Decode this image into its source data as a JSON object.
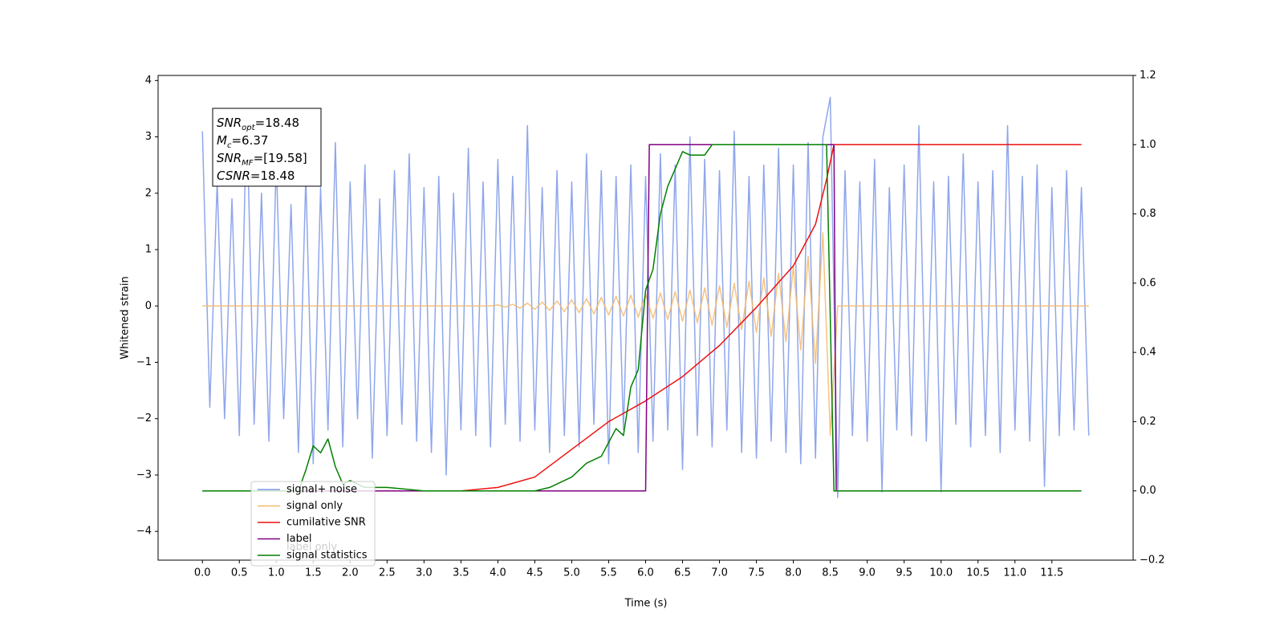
{
  "chart_data": {
    "type": "line",
    "xlabel": "Time (s)",
    "ylabel": "Whitened strain",
    "xlim": [
      -0.6,
      12.6
    ],
    "ylim": [
      -4.51,
      4.09
    ],
    "y2lim": [
      -0.2,
      1.2
    ],
    "xticks": [
      {
        "value": 0,
        "label": "0.0"
      },
      {
        "value": 0.5,
        "label": "0.5"
      },
      {
        "value": 1,
        "label": "1.0"
      },
      {
        "value": 1.5,
        "label": "1.5"
      },
      {
        "value": 2,
        "label": "2.0"
      },
      {
        "value": 2.5,
        "label": "2.5"
      },
      {
        "value": 3,
        "label": "3.0"
      },
      {
        "value": 3.5,
        "label": "3.5"
      },
      {
        "value": 4,
        "label": "4.0"
      },
      {
        "value": 4.5,
        "label": "4.5"
      },
      {
        "value": 5,
        "label": "5.0"
      },
      {
        "value": 5.5,
        "label": "5.5"
      },
      {
        "value": 6,
        "label": "6.0"
      },
      {
        "value": 6.5,
        "label": "6.5"
      },
      {
        "value": 7,
        "label": "7.0"
      },
      {
        "value": 7.5,
        "label": "7.5"
      },
      {
        "value": 8,
        "label": "8.0"
      },
      {
        "value": 8.5,
        "label": "8.5"
      },
      {
        "value": 9,
        "label": "9.0"
      },
      {
        "value": 9.5,
        "label": "9.5"
      },
      {
        "value": 10,
        "label": "10.0"
      },
      {
        "value": 10.5,
        "label": "10.5"
      },
      {
        "value": 11,
        "label": "11.0"
      },
      {
        "value": 11.5,
        "label": "11.5"
      }
    ],
    "yticks": [
      {
        "value": -4,
        "label": "−4"
      },
      {
        "value": -3,
        "label": "−3"
      },
      {
        "value": -2,
        "label": "−2"
      },
      {
        "value": -1,
        "label": "−1"
      },
      0,
      1,
      2,
      3,
      4
    ],
    "y2ticks": [
      {
        "value": -0.2,
        "label": "−0.2"
      },
      {
        "value": 0,
        "label": "0.0"
      },
      {
        "value": 0.2,
        "label": "0.2"
      },
      {
        "value": 0.4,
        "label": "0.4"
      },
      {
        "value": 0.6,
        "label": "0.6"
      },
      {
        "value": 0.8,
        "label": "0.8"
      },
      {
        "value": 1,
        "label": "1.0"
      },
      {
        "value": 1.2,
        "label": "1.2"
      }
    ],
    "legend": "lower left",
    "x": [
      0,
      0.1,
      0.2,
      0.3,
      0.4,
      0.5,
      0.6,
      0.7,
      0.8,
      0.9,
      1,
      1.1,
      1.2,
      1.3,
      1.4,
      1.5,
      1.6,
      1.7,
      1.8,
      1.9,
      2,
      2.1,
      2.2,
      2.3,
      2.4,
      2.5,
      2.6,
      2.7,
      2.8,
      2.9,
      3,
      3.1,
      3.2,
      3.3,
      3.4,
      3.5,
      3.6,
      3.7,
      3.8,
      3.9,
      4,
      4.1,
      4.2,
      4.3,
      4.4,
      4.5,
      4.6,
      4.7,
      4.8,
      4.9,
      5,
      5.1,
      5.2,
      5.3,
      5.4,
      5.5,
      5.6,
      5.7,
      5.8,
      5.9,
      6,
      6.1,
      6.2,
      6.3,
      6.4,
      6.5,
      6.6,
      6.7,
      6.8,
      6.9,
      7,
      7.1,
      7.2,
      7.3,
      7.4,
      7.5,
      7.6,
      7.7,
      7.8,
      7.9,
      8,
      8.1,
      8.2,
      8.3,
      8.4,
      8.5,
      8.6,
      8.7,
      8.8,
      8.9,
      9,
      9.1,
      9.2,
      9.3,
      9.4,
      9.5,
      9.6,
      9.7,
      9.8,
      9.9,
      10,
      10.1,
      10.2,
      10.3,
      10.4,
      10.5,
      10.6,
      10.7,
      10.8,
      10.9,
      11,
      11.1,
      11.2,
      11.3,
      11.4,
      11.5,
      11.6,
      11.7,
      11.8,
      11.9,
      12
    ],
    "series": [
      {
        "name": "signal+ noise",
        "color": "#7b96e8",
        "axis": "y",
        "values": [
          3.1,
          -1.8,
          2.2,
          -2.0,
          1.9,
          -2.3,
          3.5,
          -2.1,
          2.0,
          -2.4,
          2.6,
          -2.0,
          1.8,
          -2.6,
          2.3,
          -2.8,
          2.1,
          -2.2,
          2.9,
          -2.5,
          2.2,
          -2.0,
          2.5,
          -2.7,
          1.9,
          -2.3,
          2.4,
          -2.1,
          2.7,
          -2.4,
          2.1,
          -2.6,
          2.3,
          -3.0,
          2.0,
          -2.2,
          2.8,
          -2.3,
          2.2,
          -2.5,
          2.6,
          -2.1,
          2.3,
          -2.4,
          3.2,
          -2.2,
          2.1,
          -2.6,
          2.4,
          -2.3,
          2.2,
          -2.5,
          2.7,
          -2.1,
          2.4,
          -2.8,
          2.3,
          -2.2,
          2.5,
          -2.6,
          2.3,
          -2.4,
          2.7,
          -2.2,
          2.5,
          -2.9,
          3.0,
          -2.3,
          2.6,
          -2.5,
          2.4,
          -2.2,
          3.1,
          -2.6,
          2.3,
          -2.7,
          2.5,
          -2.4,
          2.8,
          -2.6,
          2.5,
          -2.8,
          2.9,
          -2.7,
          3.0,
          3.7,
          -3.4,
          2.4,
          -2.3,
          2.2,
          -2.4,
          2.6,
          -3.3,
          2.1,
          -2.2,
          2.5,
          -2.3,
          3.2,
          -2.4,
          2.2,
          -3.3,
          2.3,
          -2.1,
          2.7,
          -2.5,
          2.2,
          -2.3,
          2.4,
          -2.6,
          3.2,
          -2.2,
          2.3,
          -2.4,
          2.5,
          -3.2,
          2.1,
          -2.3,
          2.4,
          -2.2,
          2.1,
          -2.3
        ]
      },
      {
        "name": "signal only",
        "color": "#f5b86a",
        "axis": "y",
        "values": [
          0,
          0,
          0,
          0,
          0,
          0,
          0,
          0,
          0,
          0,
          0,
          0,
          0,
          0,
          0,
          0,
          0,
          0,
          0,
          0,
          0,
          0,
          0,
          0,
          0,
          0,
          0,
          0,
          0,
          0,
          0,
          0,
          0,
          0,
          0,
          0,
          0,
          0,
          0,
          0,
          0.02,
          -0.02,
          0.03,
          -0.04,
          0.05,
          -0.06,
          0.07,
          -0.08,
          0.09,
          -0.1,
          0.11,
          -0.12,
          0.13,
          -0.14,
          0.15,
          -0.16,
          0.17,
          -0.18,
          0.19,
          -0.2,
          0.21,
          -0.22,
          0.23,
          -0.24,
          0.25,
          -0.27,
          0.28,
          -0.3,
          0.32,
          -0.34,
          0.36,
          -0.38,
          0.4,
          -0.42,
          0.44,
          -0.47,
          0.5,
          -0.54,
          0.58,
          -0.63,
          0.7,
          -0.78,
          0.88,
          -1.02,
          1.3,
          -2.3,
          0,
          0,
          0,
          0,
          0,
          0,
          0,
          0,
          0,
          0,
          0,
          0,
          0,
          0,
          0,
          0,
          0,
          0,
          0,
          0,
          0,
          0,
          0,
          0,
          0,
          0,
          0,
          0,
          0,
          0,
          0,
          0,
          0,
          0,
          0
        ]
      },
      {
        "name": "cumilative SNR",
        "color": "#ee1111",
        "axis": "y2",
        "x": [
          0,
          3.5,
          4,
          4.5,
          5,
          5.5,
          6,
          6.5,
          7,
          7.5,
          8,
          8.3,
          8.45,
          8.55,
          11.9
        ],
        "values": [
          0,
          0,
          0.01,
          0.04,
          0.12,
          0.2,
          0.26,
          0.33,
          0.42,
          0.53,
          0.65,
          0.77,
          0.9,
          1,
          1
        ]
      },
      {
        "name": "label",
        "color": "#800080",
        "axis": "y2",
        "x": [
          0,
          6,
          6.05,
          8.55,
          8.58,
          11.9
        ],
        "values": [
          0,
          0,
          1,
          1,
          0,
          0
        ]
      },
      {
        "name": "signal statistics",
        "color": "#008000",
        "axis": "y2",
        "x": [
          0,
          1.3,
          1.4,
          1.5,
          1.6,
          1.7,
          1.8,
          1.9,
          2,
          2.2,
          2.5,
          3,
          4.5,
          4.7,
          5,
          5.2,
          5.4,
          5.6,
          5.7,
          5.8,
          5.9,
          6,
          6.1,
          6.2,
          6.3,
          6.4,
          6.5,
          6.6,
          6.8,
          6.9,
          7,
          8.45,
          8.55,
          11.9
        ],
        "values": [
          0,
          0,
          0.06,
          0.13,
          0.11,
          0.15,
          0.07,
          0.02,
          0.03,
          0.01,
          0.01,
          0,
          0,
          0.01,
          0.04,
          0.08,
          0.1,
          0.18,
          0.16,
          0.3,
          0.35,
          0.58,
          0.64,
          0.8,
          0.88,
          0.93,
          0.98,
          0.97,
          0.97,
          1,
          1,
          1,
          0,
          0
        ]
      }
    ],
    "hidden_legend_text": "label only",
    "annotation": [
      {
        "text": "SNR",
        "sub": "opt",
        "rest": "=18.48"
      },
      {
        "text": "M",
        "sub": "c",
        "rest": "=6.37"
      },
      {
        "text": "SNR",
        "sub": "MF",
        "rest": "=[19.58]"
      },
      {
        "text": "CSNR",
        "rest": "=18.48"
      }
    ]
  }
}
